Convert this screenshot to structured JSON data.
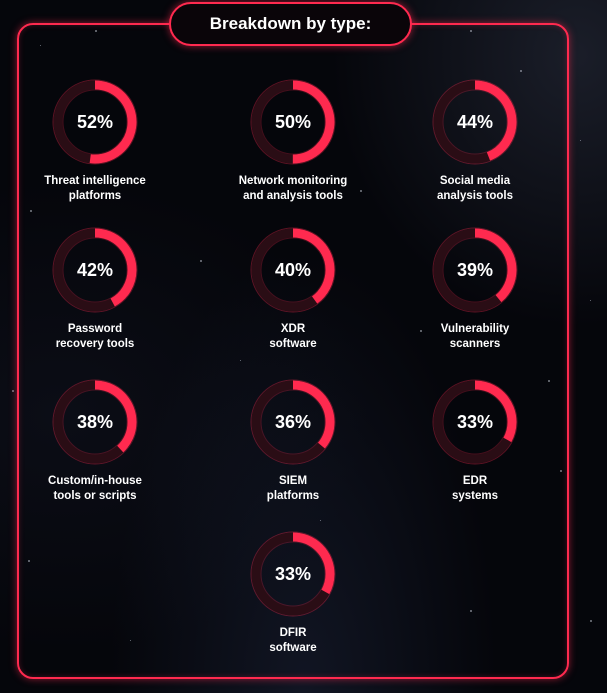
{
  "header": {
    "title": "Breakdown by type:"
  },
  "colors": {
    "accent": "#ff2a4f",
    "track": "#2a0d15"
  },
  "chart_data": {
    "type": "donut-grid",
    "title": "Breakdown by type:",
    "unit": "%",
    "items": [
      {
        "value": 52,
        "value_label": "52%",
        "label_lines": [
          "Threat intelligence",
          "platforms"
        ]
      },
      {
        "value": 50,
        "value_label": "50%",
        "label_lines": [
          "Network monitoring",
          "and analysis tools"
        ]
      },
      {
        "value": 44,
        "value_label": "44%",
        "label_lines": [
          "Social media",
          "analysis tools"
        ]
      },
      {
        "value": 42,
        "value_label": "42%",
        "label_lines": [
          "Password",
          "recovery tools"
        ]
      },
      {
        "value": 40,
        "value_label": "40%",
        "label_lines": [
          "XDR",
          "software"
        ]
      },
      {
        "value": 39,
        "value_label": "39%",
        "label_lines": [
          "Vulnerability",
          "scanners"
        ]
      },
      {
        "value": 38,
        "value_label": "38%",
        "label_lines": [
          "Custom/in-house",
          "tools or scripts"
        ]
      },
      {
        "value": 36,
        "value_label": "36%",
        "label_lines": [
          "SIEM",
          "platforms"
        ]
      },
      {
        "value": 33,
        "value_label": "33%",
        "label_lines": [
          "EDR",
          "systems"
        ]
      },
      {
        "value": 33,
        "value_label": "33%",
        "label_lines": [
          "DFIR",
          "software"
        ]
      }
    ]
  }
}
